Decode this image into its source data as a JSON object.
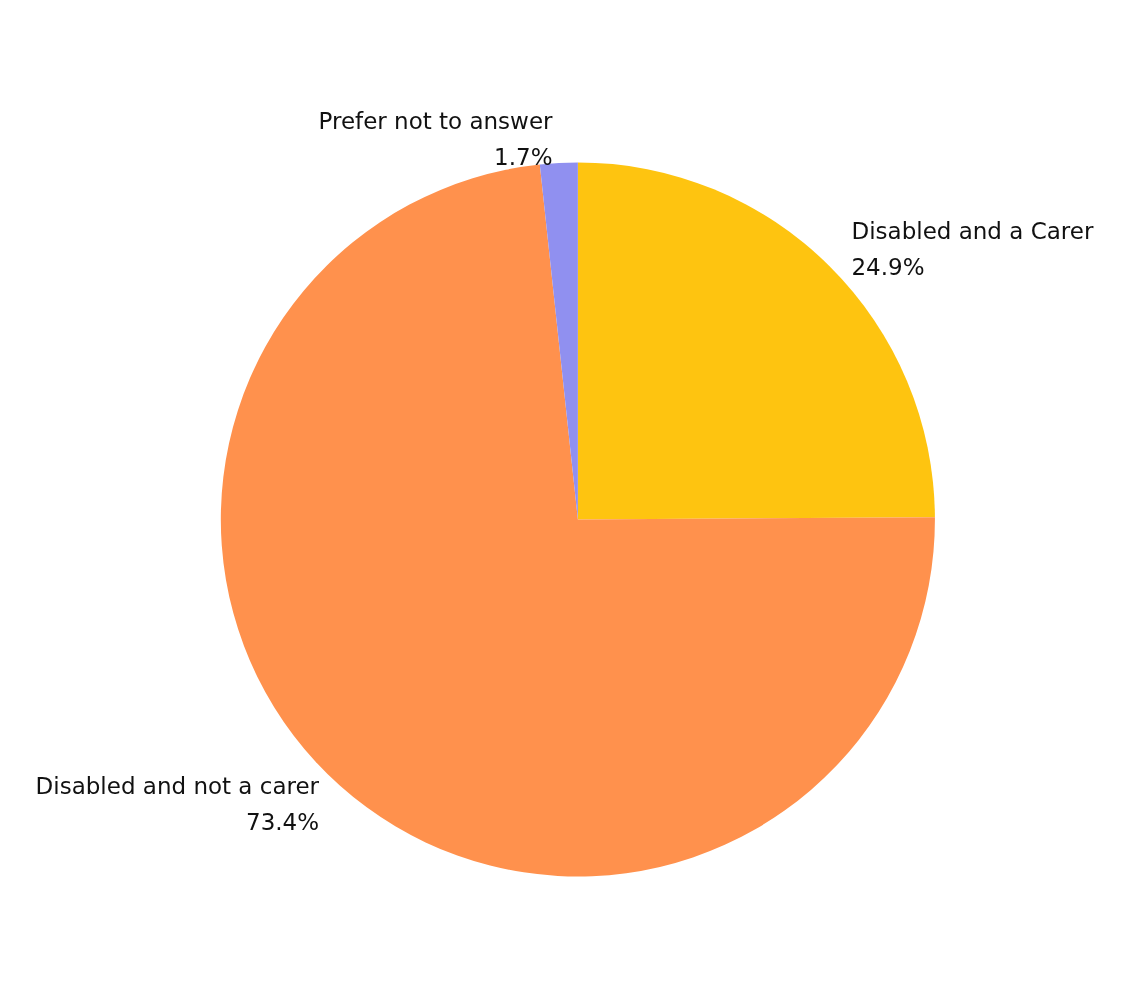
{
  "chart_data": {
    "type": "pie",
    "categories": [
      "Disabled and a Carer",
      "Disabled and not a carer",
      "Prefer not to answer"
    ],
    "values": [
      24.9,
      73.4,
      1.7
    ],
    "colors": [
      "#fec410",
      "#ff914d",
      "#9090f0"
    ],
    "value_labels": [
      "24.9%",
      "73.4%",
      "1.7%"
    ]
  }
}
